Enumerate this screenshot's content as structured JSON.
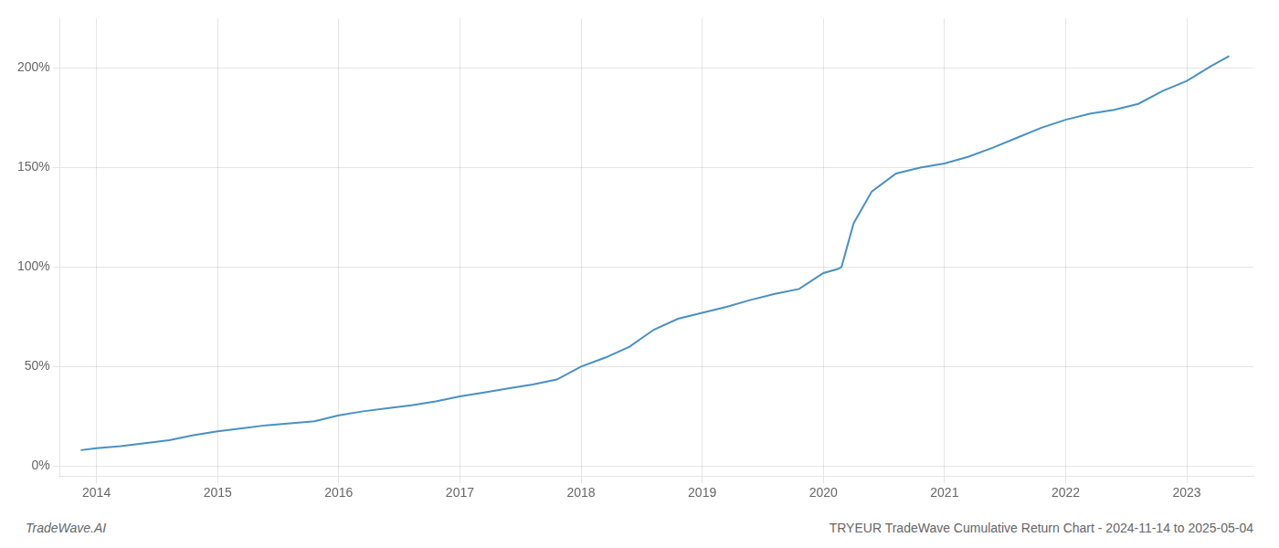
{
  "chart_data": {
    "type": "line",
    "annotations": [
      "TradeWave.AI",
      "TRYEUR TradeWave Cumulative Return Chart - 2024-11-14 to 2025-05-04"
    ],
    "x": [
      2013.87,
      2014.0,
      2014.2,
      2014.4,
      2014.6,
      2014.8,
      2015.0,
      2015.2,
      2015.4,
      2015.6,
      2015.8,
      2016.0,
      2016.2,
      2016.4,
      2016.6,
      2016.8,
      2017.0,
      2017.2,
      2017.4,
      2017.6,
      2017.8,
      2018.0,
      2018.2,
      2018.4,
      2018.6,
      2018.8,
      2019.0,
      2019.2,
      2019.4,
      2019.6,
      2019.8,
      2020.0,
      2020.12,
      2020.15,
      2020.25,
      2020.4,
      2020.6,
      2020.8,
      2021.0,
      2021.2,
      2021.4,
      2021.6,
      2021.8,
      2022.0,
      2022.2,
      2022.4,
      2022.6,
      2022.8,
      2023.0,
      2023.2,
      2023.35
    ],
    "values": [
      0.08,
      0.09,
      0.1,
      0.115,
      0.13,
      0.155,
      0.175,
      0.19,
      0.205,
      0.215,
      0.225,
      0.255,
      0.275,
      0.29,
      0.305,
      0.325,
      0.35,
      0.37,
      0.39,
      0.41,
      0.435,
      0.5,
      0.545,
      0.6,
      0.685,
      0.74,
      0.77,
      0.8,
      0.835,
      0.865,
      0.89,
      0.97,
      0.99,
      1.0,
      1.22,
      1.38,
      1.47,
      1.5,
      1.52,
      1.555,
      1.6,
      1.65,
      1.7,
      1.74,
      1.77,
      1.79,
      1.82,
      1.885,
      1.935,
      2.01,
      2.06
    ],
    "color": "#4a90c4",
    "xlim": [
      2013.7,
      2023.55
    ],
    "xticks": [
      2014,
      2015,
      2016,
      2017,
      2018,
      2019,
      2020,
      2021,
      2022,
      2023
    ],
    "ylim": [
      -0.05,
      2.25
    ],
    "yticks": [
      {
        "value": 0.0,
        "label": "0%"
      },
      {
        "value": 0.5,
        "label": "50%"
      },
      {
        "value": 1.0,
        "label": "100%"
      },
      {
        "value": 1.5,
        "label": "150%"
      },
      {
        "value": 2.0,
        "label": "200%"
      }
    ],
    "grid": true
  }
}
